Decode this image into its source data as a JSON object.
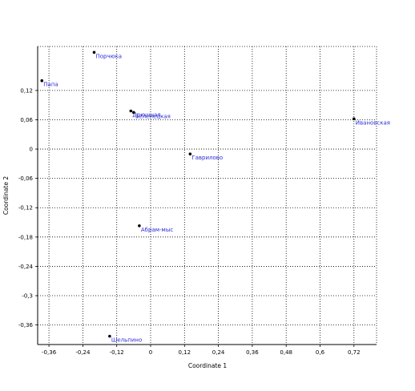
{
  "chart_data": {
    "type": "scatter",
    "title": "",
    "xlabel": "Coordinate 1",
    "ylabel": "Coordinate 2",
    "xlim": [
      -0.4,
      0.8
    ],
    "ylim": [
      -0.4,
      0.21
    ],
    "x_ticks": [
      -0.36,
      -0.24,
      -0.12,
      0,
      0.12,
      0.24,
      0.36,
      0.48,
      0.6,
      0.72
    ],
    "x_tick_labels": [
      "-0,36",
      "-0,24",
      "-0,12",
      "0",
      "0,12",
      "0,24",
      "0,36",
      "0,48",
      "0,6",
      "0,72"
    ],
    "y_ticks": [
      0.12,
      0.06,
      0,
      -0.06,
      -0.12,
      -0.18,
      -0.24,
      -0.3,
      -0.36
    ],
    "y_tick_labels": [
      "0,12",
      "0,06",
      "0",
      "-0,06",
      "-0,12",
      "-0,18",
      "-0,24",
      "-0,3",
      "-0,36"
    ],
    "grid": true,
    "point_color": "#000000",
    "label_color": "#2b2bd6",
    "points": [
      {
        "label": "Порчюка",
        "x": -0.2,
        "y": 0.198
      },
      {
        "label": "Папа",
        "x": -0.385,
        "y": 0.14
      },
      {
        "label": "Дрюшная",
        "x": -0.07,
        "y": 0.078
      },
      {
        "label": "Зеленецкая",
        "x": -0.06,
        "y": 0.075
      },
      {
        "label": "Ивановская",
        "x": 0.72,
        "y": 0.062
      },
      {
        "label": "Гаврилово",
        "x": 0.14,
        "y": -0.01
      },
      {
        "label": "Абрам-мыс",
        "x": -0.04,
        "y": -0.157
      },
      {
        "label": "Шельпино",
        "x": -0.145,
        "y": -0.383
      }
    ]
  }
}
